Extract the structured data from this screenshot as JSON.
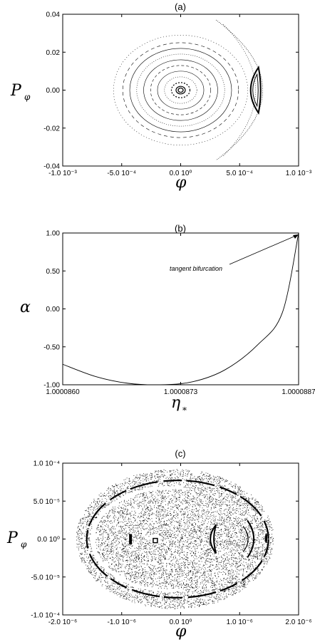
{
  "chart_data": [
    {
      "panel": "(a)",
      "type": "scatter",
      "xlabel": "φ",
      "ylabel": "P",
      "ylabel_sub": "φ",
      "xlim": [
        -0.001,
        0.001
      ],
      "ylim": [
        -0.04,
        0.04
      ],
      "x_tick_labels": [
        "-1.0 10⁻³",
        "-5.0 10⁻⁴",
        "0.0 10⁰",
        "5.0 10⁻⁴",
        "1.0 10⁻³"
      ],
      "y_tick_labels": [
        "-0.04",
        "-0.02",
        "0.00",
        "0.02",
        "0.04"
      ],
      "series": [
        {
          "kind": "invariant-curves",
          "radii_y": [
            0.002,
            0.004,
            0.007,
            0.01,
            0.013,
            0.016,
            0.019,
            0.022,
            0.025,
            0.029
          ]
        },
        {
          "kind": "island",
          "center": [
            0.00066,
            0.0
          ],
          "half_width_y": 0.012
        },
        {
          "kind": "separatrix-crescent",
          "x_range": [
            0.0003,
            0.00085
          ],
          "y_range": [
            -0.037,
            0.037
          ]
        }
      ]
    },
    {
      "panel": "(b)",
      "type": "line",
      "xlabel": "η",
      "xlabel_sub": "*",
      "ylabel": "α",
      "xlim": [
        1.0000858,
        1.0000887
      ],
      "ylim": [
        -1.0,
        1.0
      ],
      "x_tick_labels": [
        "1.0000860",
        "1.0000873",
        "1.0000887"
      ],
      "y_tick_labels": [
        "-1.00",
        "-0.50",
        "0.00",
        "0.50",
        "1.00"
      ],
      "series": [
        {
          "x": [
            1.0000858,
            1.0000862,
            1.0000866,
            1.000087,
            1.0000874,
            1.0000878,
            1.0000882,
            1.0000885,
            1.0000887
          ],
          "y": [
            -0.73,
            -0.89,
            -0.98,
            -1.0,
            -0.96,
            -0.8,
            -0.47,
            -0.05,
            1.0
          ]
        }
      ],
      "annotation": {
        "text": "tangent bifurcation",
        "x": 1.0000887,
        "y": 1.0
      }
    },
    {
      "panel": "(c)",
      "type": "scatter",
      "xlabel": "φ",
      "ylabel": "P",
      "ylabel_sub": "φ",
      "xlim": [
        -2e-06,
        2e-06
      ],
      "ylim": [
        -0.0001,
        0.0001
      ],
      "x_tick_labels": [
        "-2.0 10⁻⁶",
        "-1.0 10⁻⁶",
        "0.0 10⁰",
        "1.0 10⁻⁶",
        "2.0 10⁻⁶"
      ],
      "y_tick_labels": [
        "-1.0 10⁻⁴",
        "-5.0 10⁻⁵",
        "0.0 10⁰",
        "5.0 10⁻⁵",
        "1.0 10⁻⁴"
      ],
      "series": [
        {
          "kind": "chaotic-sea",
          "x_range": [
            -1.75e-06,
            1.6e-06
          ],
          "y_range": [
            -9.2e-05,
            9.2e-05
          ]
        },
        {
          "kind": "island-chain",
          "points": [
            [
              -8.5e-07,
              0.0
            ],
            [
              -4.3e-07,
              -2e-06
            ],
            [
              6e-07,
              0.0
            ],
            [
              1.45e-06,
              1e-06
            ]
          ]
        }
      ]
    }
  ]
}
